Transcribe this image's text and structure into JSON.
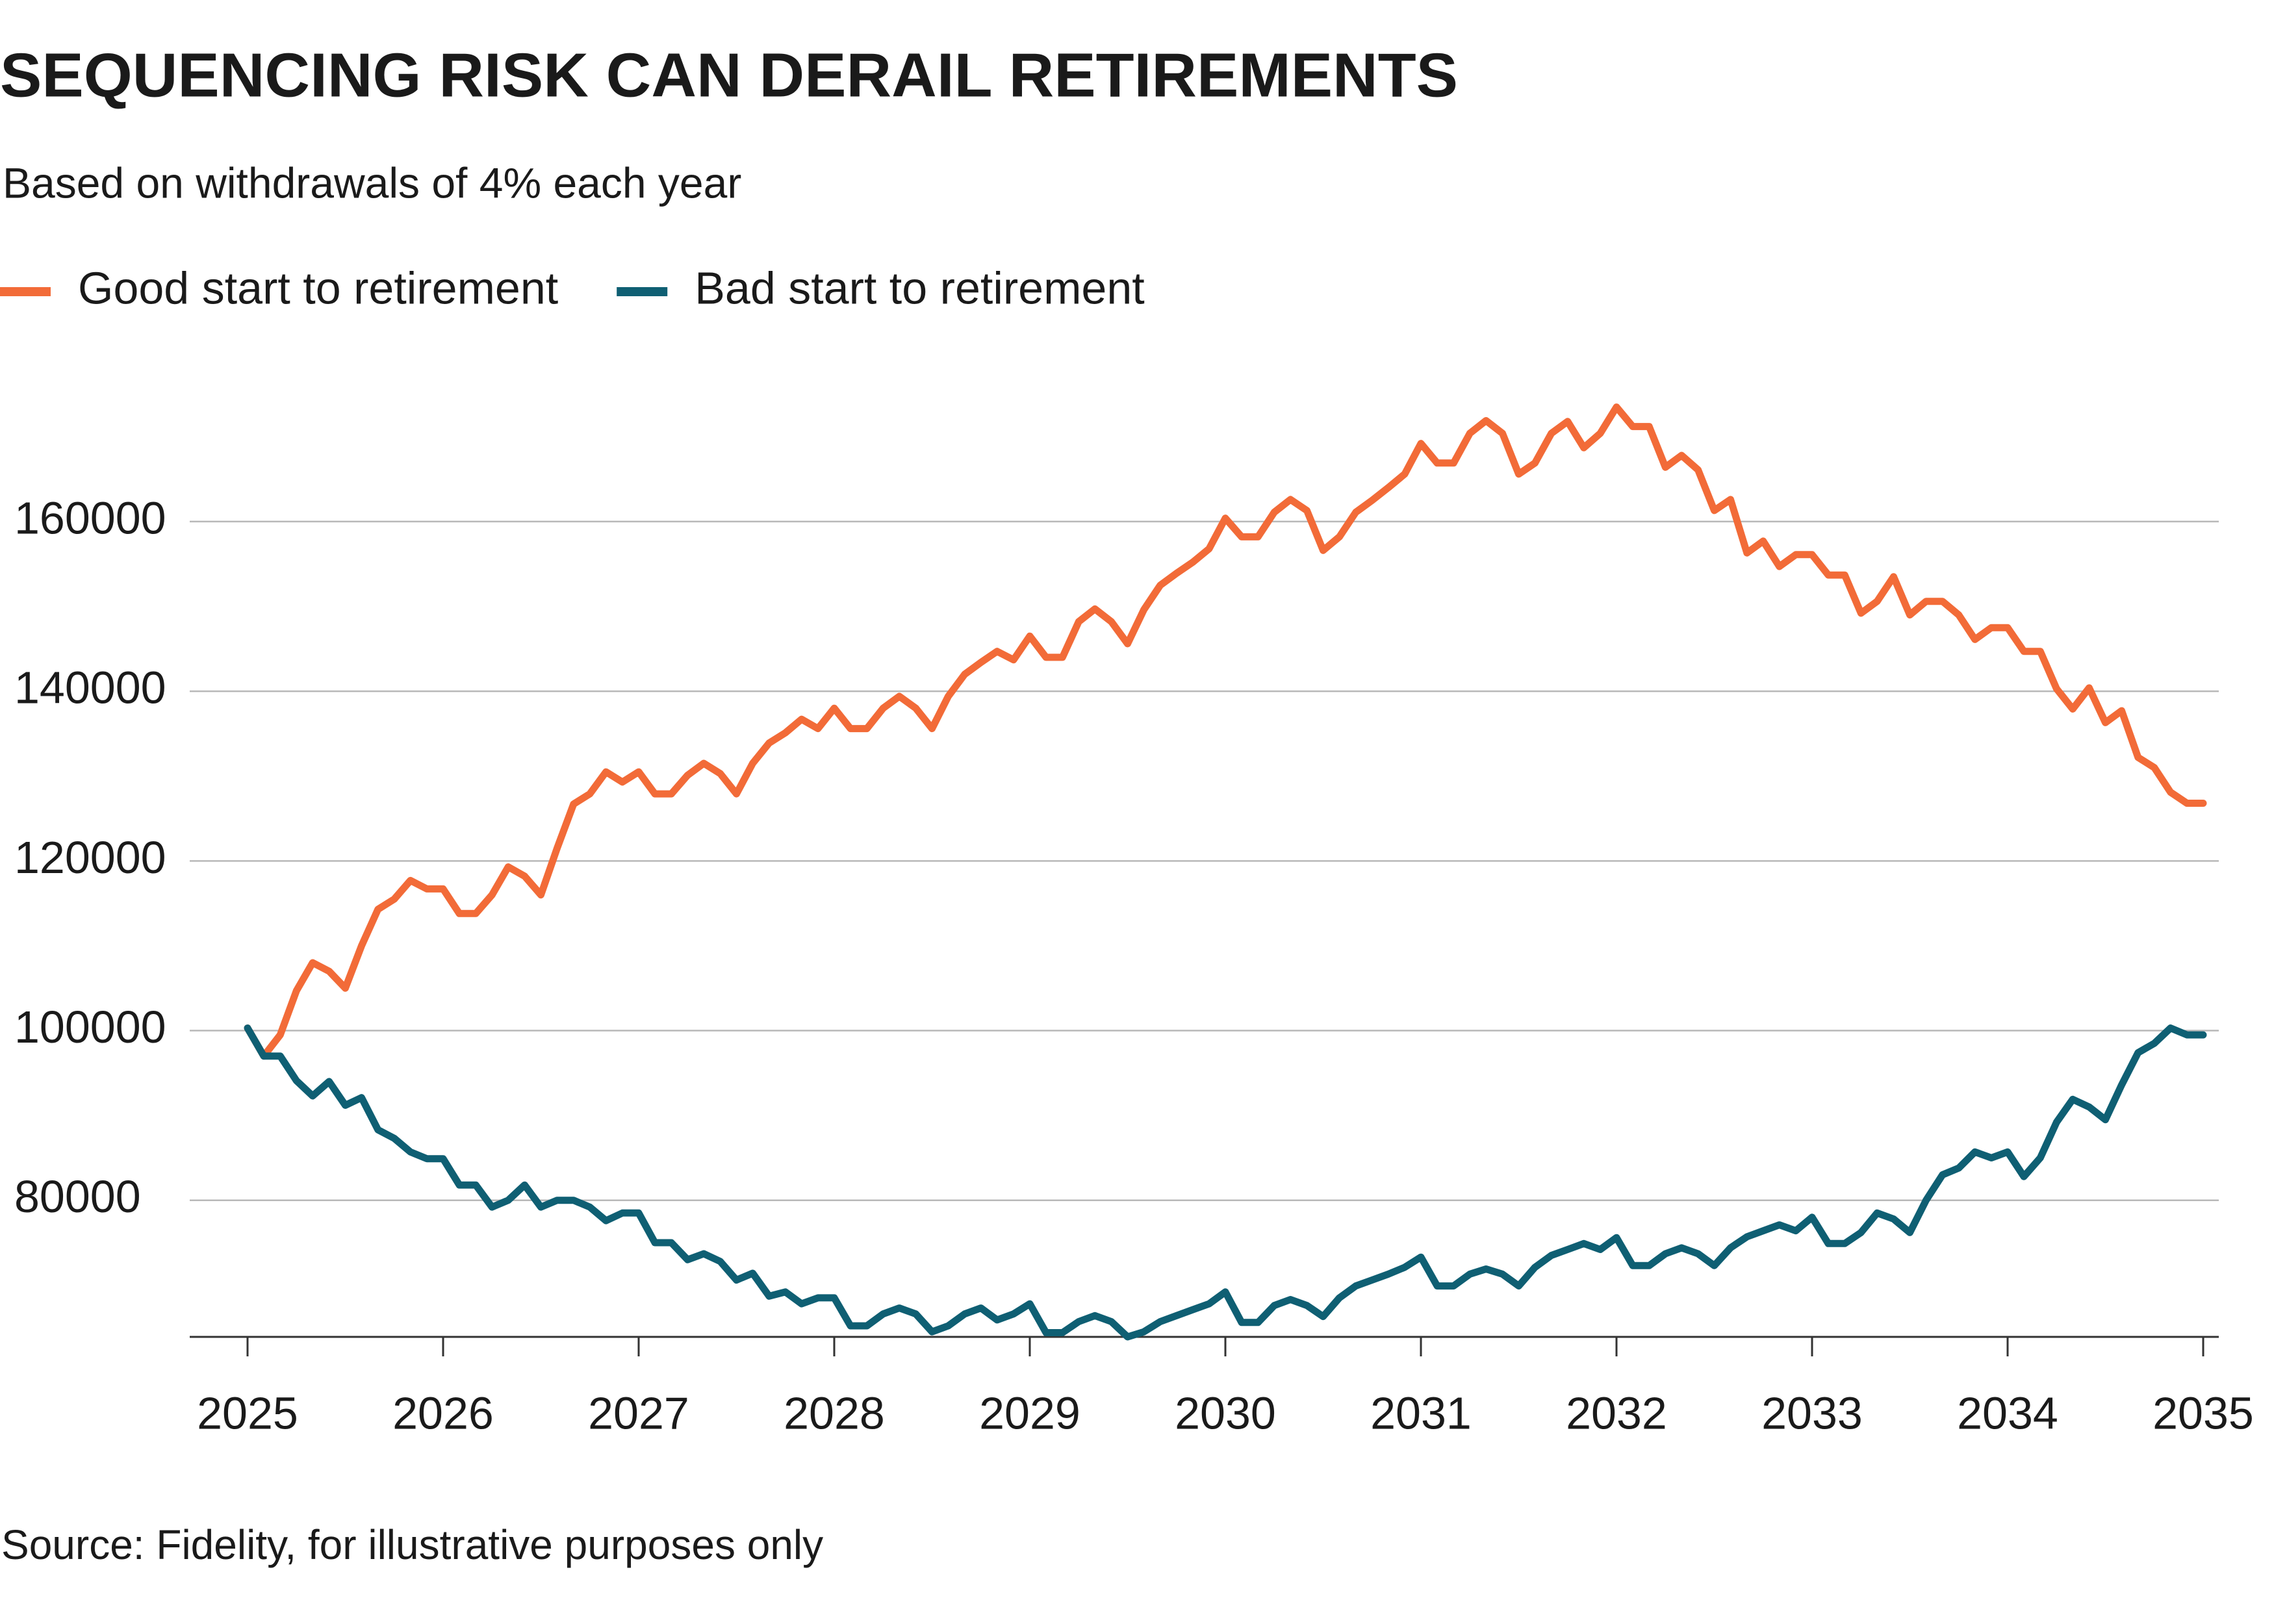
{
  "chart_data": {
    "type": "line",
    "title": "SEQUENCING RISK CAN DERAIL RETIREMENTS",
    "subtitle": "Based on withdrawals of 4% each year",
    "source": "Source: Fidelity, for illustrative purposes only",
    "x": [
      2025,
      2025.083,
      2025.167,
      2025.25,
      2025.333,
      2025.417,
      2025.5,
      2025.583,
      2025.667,
      2025.75,
      2025.833,
      2025.917,
      2026,
      2026.083,
      2026.167,
      2026.25,
      2026.333,
      2026.417,
      2026.5,
      2026.583,
      2026.667,
      2026.75,
      2026.833,
      2026.917,
      2027,
      2027.083,
      2027.167,
      2027.25,
      2027.333,
      2027.417,
      2027.5,
      2027.583,
      2027.667,
      2027.75,
      2027.833,
      2027.917,
      2028,
      2028.083,
      2028.167,
      2028.25,
      2028.333,
      2028.417,
      2028.5,
      2028.583,
      2028.667,
      2028.75,
      2028.833,
      2028.917,
      2029,
      2029.083,
      2029.167,
      2029.25,
      2029.333,
      2029.417,
      2029.5,
      2029.583,
      2029.667,
      2029.75,
      2029.833,
      2029.917,
      2030,
      2030.083,
      2030.167,
      2030.25,
      2030.333,
      2030.417,
      2030.5,
      2030.583,
      2030.667,
      2030.75,
      2030.833,
      2030.917,
      2031,
      2031.083,
      2031.167,
      2031.25,
      2031.333,
      2031.417,
      2031.5,
      2031.583,
      2031.667,
      2031.75,
      2031.833,
      2031.917,
      2032,
      2032.083,
      2032.167,
      2032.25,
      2032.333,
      2032.417,
      2032.5,
      2032.583,
      2032.667,
      2032.75,
      2032.833,
      2032.917,
      2033,
      2033.083,
      2033.167,
      2033.25,
      2033.333,
      2033.417,
      2033.5,
      2033.583,
      2033.667,
      2033.75,
      2033.833,
      2033.917,
      2034,
      2034.083,
      2034.167,
      2034.25,
      2034.333,
      2034.417,
      2034.5,
      2034.583,
      2034.667,
      2034.75,
      2034.833,
      2034.917,
      2035
    ],
    "series": [
      {
        "name": "Good start to retirement",
        "color": "#f26b38",
        "values": [
          100300,
          97000,
          99500,
          104700,
          108000,
          107000,
          105000,
          110000,
          114300,
          115500,
          117700,
          116700,
          116700,
          113800,
          113800,
          116000,
          119300,
          118200,
          116000,
          121500,
          126700,
          127900,
          130500,
          129300,
          130500,
          127900,
          127900,
          130100,
          131500,
          130300,
          127900,
          131500,
          133900,
          135100,
          136700,
          135600,
          138000,
          135600,
          135600,
          138000,
          139400,
          138000,
          135600,
          139400,
          142000,
          143400,
          144700,
          143700,
          146500,
          144000,
          144000,
          148200,
          149700,
          148200,
          145600,
          149600,
          152500,
          153900,
          155200,
          156800,
          160400,
          158200,
          158200,
          161100,
          162600,
          161300,
          156600,
          158200,
          161100,
          162500,
          164000,
          165600,
          169200,
          166900,
          166900,
          170400,
          171900,
          170400,
          165600,
          166900,
          170400,
          171800,
          168700,
          170400,
          173500,
          171200,
          171200,
          166400,
          167800,
          166100,
          161300,
          162600,
          156300,
          157700,
          154700,
          156100,
          156100,
          153700,
          153700,
          149200,
          150600,
          153500,
          149000,
          150600,
          150600,
          149000,
          146100,
          147500,
          147500,
          144700,
          144700,
          140300,
          137900,
          140400,
          136300,
          137700,
          132200,
          131000,
          128100,
          126800,
          126800
        ]
      },
      {
        "name": "Bad start to retirement",
        "color": "#0f5f73",
        "values": [
          100300,
          97000,
          97000,
          94100,
          92300,
          94000,
          91200,
          92100,
          88300,
          87300,
          85700,
          84900,
          84900,
          81800,
          81800,
          79200,
          80000,
          81800,
          79200,
          80000,
          80000,
          79200,
          77600,
          78500,
          78500,
          75000,
          75000,
          73000,
          73700,
          72800,
          70600,
          71400,
          68700,
          69200,
          67800,
          68500,
          68500,
          65200,
          65200,
          66600,
          67300,
          66600,
          64500,
          65200,
          66600,
          67300,
          65900,
          66600,
          67800,
          64400,
          64400,
          65700,
          66400,
          65700,
          63900,
          64500,
          65700,
          66400,
          67100,
          67800,
          69200,
          65600,
          65600,
          67600,
          68300,
          67600,
          66300,
          68500,
          69900,
          70600,
          71300,
          72100,
          73300,
          69900,
          69900,
          71300,
          71900,
          71300,
          69900,
          72100,
          73500,
          74200,
          74900,
          74200,
          75600,
          72300,
          72300,
          73700,
          74400,
          73700,
          72300,
          74400,
          75700,
          76400,
          77100,
          76400,
          78000,
          74900,
          74900,
          76200,
          78500,
          77800,
          76200,
          80000,
          83000,
          83800,
          85700,
          85000,
          85700,
          82800,
          85000,
          89200,
          91900,
          91000,
          89500,
          93600,
          97400,
          98500,
          100300,
          99500,
          99500
        ]
      }
    ],
    "xlim": [
      2025,
      2035
    ],
    "xticks": [
      2025,
      2026,
      2027,
      2028,
      2029,
      2030,
      2031,
      2032,
      2033,
      2034,
      2035
    ],
    "ylim": [
      63900,
      175000
    ],
    "yticks": [
      80000,
      100000,
      120000,
      140000,
      160000
    ],
    "grid": true,
    "legend": "top"
  }
}
